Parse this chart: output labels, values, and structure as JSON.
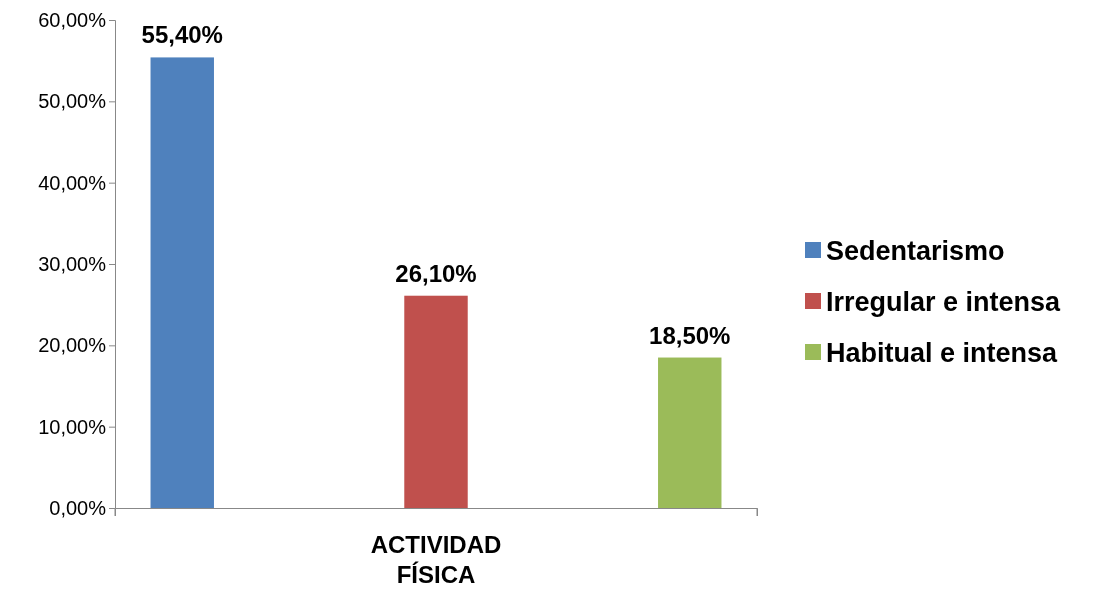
{
  "chart_data": {
    "type": "bar",
    "categories": [
      "ACTIVIDAD FÍSICA"
    ],
    "series": [
      {
        "name": "Sedentarismo",
        "color": "#4f81bd",
        "values": [
          55.4
        ],
        "value_labels": [
          "55,40%"
        ]
      },
      {
        "name": "Irregular e intensa",
        "color": "#c0504d",
        "values": [
          26.1
        ],
        "value_labels": [
          "26,10%"
        ]
      },
      {
        "name": "Habitual e intensa",
        "color": "#9bbb59",
        "values": [
          18.5
        ],
        "value_labels": [
          "18,50%"
        ]
      }
    ],
    "ylim": [
      0,
      60
    ],
    "yticks": [
      {
        "value": 0,
        "label": "0,00%"
      },
      {
        "value": 10,
        "label": "10,00%"
      },
      {
        "value": 20,
        "label": "20,00%"
      },
      {
        "value": 30,
        "label": "30,00%"
      },
      {
        "value": 40,
        "label": "40,00%"
      },
      {
        "value": 50,
        "label": "50,00%"
      },
      {
        "value": 60,
        "label": "60,00%"
      }
    ],
    "legend": "right",
    "grid": false
  }
}
